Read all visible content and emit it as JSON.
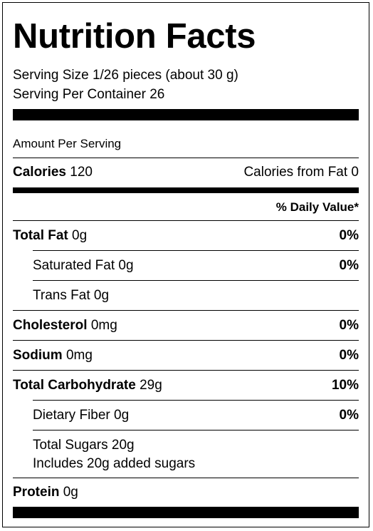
{
  "title": "Nutrition Facts",
  "serving_size": "Serving Size 1/26 pieces (about 30 g)",
  "servings_per_container": "Serving Per Container 26",
  "amount_per_serving": "Amount Per Serving",
  "calories": {
    "label": "Calories",
    "value": "120",
    "from_fat": "Calories from Fat 0"
  },
  "daily_value_header": "% Daily Value*",
  "nutrients": {
    "total_fat": {
      "label": "Total Fat",
      "amount": "0g",
      "dv": "0%"
    },
    "saturated_fat": {
      "label": "Saturated Fat 0g",
      "dv": "0%"
    },
    "trans_fat": {
      "label": "Trans Fat 0g"
    },
    "cholesterol": {
      "label": "Cholesterol",
      "amount": "0mg",
      "dv": "0%"
    },
    "sodium": {
      "label": "Sodium",
      "amount": "0mg",
      "dv": "0%"
    },
    "total_carbohydrate": {
      "label": "Total Carbohydrate",
      "amount": "29g",
      "dv": "10%"
    },
    "dietary_fiber": {
      "label": "Dietary Fiber 0g",
      "dv": "0%"
    },
    "total_sugars": {
      "label": "Total Sugars 20g",
      "added": "Includes 20g added sugars"
    },
    "protein": {
      "label": "Protein",
      "amount": "0g"
    }
  }
}
